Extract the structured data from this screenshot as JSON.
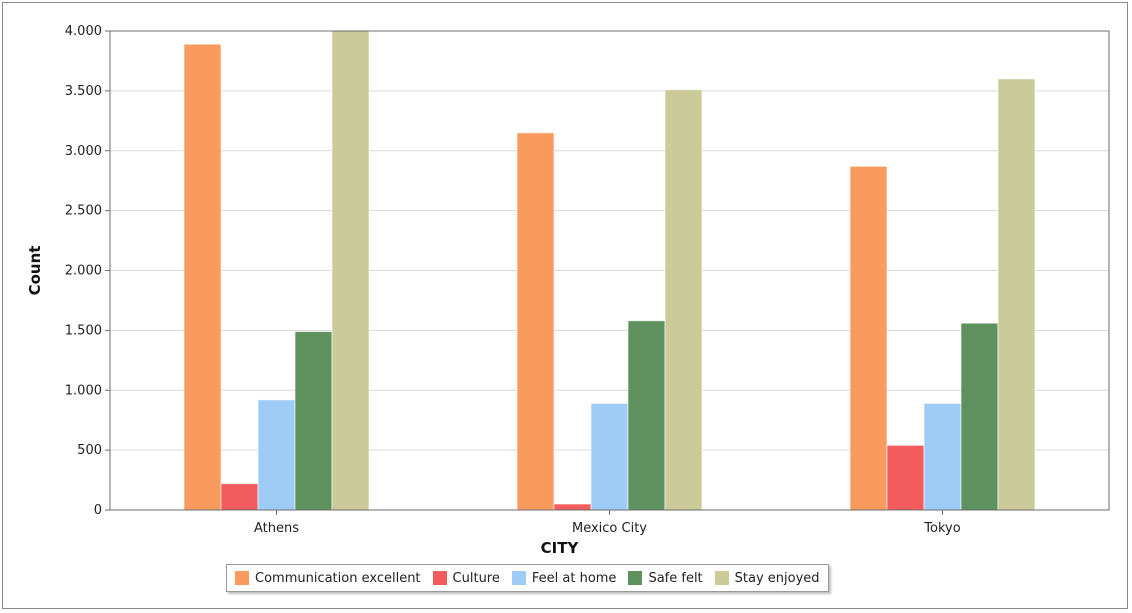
{
  "chart_data": {
    "type": "bar",
    "xlabel": "CITY",
    "ylabel": "Count",
    "categories": [
      "Athens",
      "Mexico City",
      "Tokyo"
    ],
    "ylim": [
      0,
      4000
    ],
    "yticks": [
      0,
      500,
      1000,
      1500,
      2000,
      2500,
      3000,
      3500,
      4000
    ],
    "ytick_labels": [
      "0",
      "500",
      "1.000",
      "1.500",
      "2.000",
      "2.500",
      "3.000",
      "3.500",
      "4.000"
    ],
    "grid": true,
    "legend_position": "bottom",
    "series": [
      {
        "name": "Communication excellent",
        "color": "#f99b5e",
        "values": [
          3890,
          3150,
          2870
        ]
      },
      {
        "name": "Culture",
        "color": "#f25c5c",
        "values": [
          220,
          50,
          540
        ]
      },
      {
        "name": "Feel at home",
        "color": "#9fcbf7",
        "values": [
          920,
          890,
          890
        ]
      },
      {
        "name": "Safe felt",
        "color": "#5f915f",
        "values": [
          1490,
          1580,
          1560
        ]
      },
      {
        "name": "Stay enjoyed",
        "color": "#cacb99",
        "values": [
          4000,
          3510,
          3600
        ]
      }
    ]
  }
}
